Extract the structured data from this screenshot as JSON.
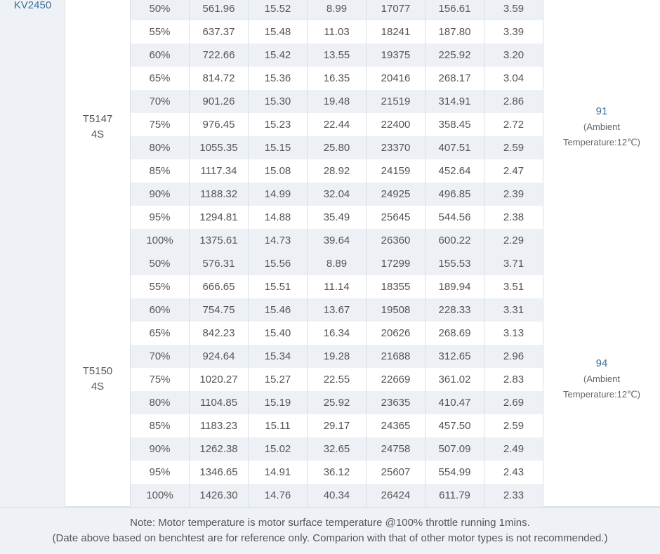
{
  "kv_label": "KV2450",
  "groups": [
    {
      "propeller": "T5147",
      "battery": "4S",
      "temperature": "91",
      "ambient_line1": "(Ambient",
      "ambient_line2": "Temperature:12℃)",
      "rows": [
        [
          "50%",
          "561.96",
          "15.52",
          "8.99",
          "17077",
          "156.61",
          "3.59"
        ],
        [
          "55%",
          "637.37",
          "15.48",
          "11.03",
          "18241",
          "187.80",
          "3.39"
        ],
        [
          "60%",
          "722.66",
          "15.42",
          "13.55",
          "19375",
          "225.92",
          "3.20"
        ],
        [
          "65%",
          "814.72",
          "15.36",
          "16.35",
          "20416",
          "268.17",
          "3.04"
        ],
        [
          "70%",
          "901.26",
          "15.30",
          "19.48",
          "21519",
          "314.91",
          "2.86"
        ],
        [
          "75%",
          "976.45",
          "15.23",
          "22.44",
          "22400",
          "358.45",
          "2.72"
        ],
        [
          "80%",
          "1055.35",
          "15.15",
          "25.80",
          "23370",
          "407.51",
          "2.59"
        ],
        [
          "85%",
          "1117.34",
          "15.08",
          "28.92",
          "24159",
          "452.64",
          "2.47"
        ],
        [
          "90%",
          "1188.32",
          "14.99",
          "32.04",
          "24925",
          "496.85",
          "2.39"
        ],
        [
          "95%",
          "1294.81",
          "14.88",
          "35.49",
          "25645",
          "544.56",
          "2.38"
        ],
        [
          "100%",
          "1375.61",
          "14.73",
          "39.64",
          "26360",
          "600.22",
          "2.29"
        ]
      ]
    },
    {
      "propeller": "T5150",
      "battery": "4S",
      "temperature": "94",
      "ambient_line1": "(Ambient",
      "ambient_line2": "Temperature:12℃)",
      "rows": [
        [
          "50%",
          "576.31",
          "15.56",
          "8.89",
          "17299",
          "155.53",
          "3.71"
        ],
        [
          "55%",
          "666.65",
          "15.51",
          "11.14",
          "18355",
          "189.94",
          "3.51"
        ],
        [
          "60%",
          "754.75",
          "15.46",
          "13.67",
          "19508",
          "228.33",
          "3.31"
        ],
        [
          "65%",
          "842.23",
          "15.40",
          "16.34",
          "20626",
          "268.69",
          "3.13"
        ],
        [
          "70%",
          "924.64",
          "15.34",
          "19.28",
          "21688",
          "312.65",
          "2.96"
        ],
        [
          "75%",
          "1020.27",
          "15.27",
          "22.55",
          "22669",
          "361.02",
          "2.83"
        ],
        [
          "80%",
          "1104.85",
          "15.19",
          "25.92",
          "23635",
          "410.47",
          "2.69"
        ],
        [
          "85%",
          "1183.23",
          "15.11",
          "29.17",
          "24365",
          "457.50",
          "2.59"
        ],
        [
          "90%",
          "1262.38",
          "15.02",
          "32.65",
          "24758",
          "507.09",
          "2.49"
        ],
        [
          "95%",
          "1346.65",
          "14.91",
          "36.12",
          "25607",
          "554.99",
          "2.43"
        ],
        [
          "100%",
          "1426.30",
          "14.76",
          "40.34",
          "26424",
          "611.79",
          "2.33"
        ]
      ]
    }
  ],
  "footer": {
    "line1": "Note: Motor temperature is motor surface temperature @100% throttle running 1mins.",
    "line2": "(Date above based on benchtest are for reference only. Comparion with that of other motor types is not recommended.)"
  },
  "colors": {
    "accent": "#3a6f9a",
    "shaded_row": "#edf1f6",
    "side_panel": "#eef2f7"
  }
}
